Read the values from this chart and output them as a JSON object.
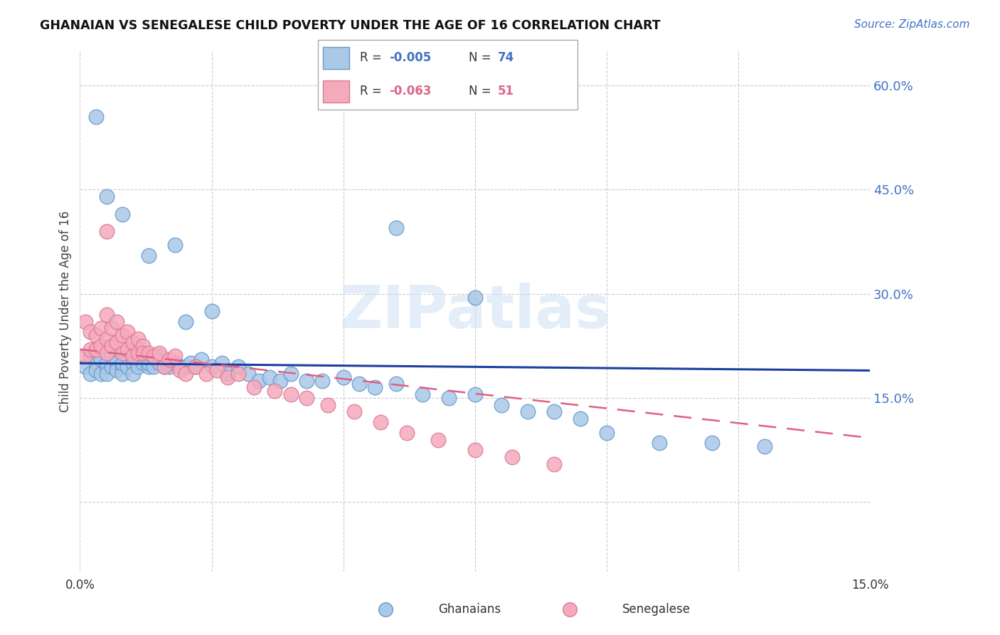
{
  "title": "GHANAIAN VS SENEGALESE CHILD POVERTY UNDER THE AGE OF 16 CORRELATION CHART",
  "source": "Source: ZipAtlas.com",
  "ylabel": "Child Poverty Under the Age of 16",
  "yticks": [
    0.0,
    0.15,
    0.3,
    0.45,
    0.6
  ],
  "ytick_labels": [
    "",
    "15.0%",
    "30.0%",
    "45.0%",
    "60.0%"
  ],
  "xmin": 0.0,
  "xmax": 0.15,
  "ymin": -0.1,
  "ymax": 0.65,
  "ghanaian_color": "#aac8e8",
  "senegalese_color": "#f5aabb",
  "ghanaian_edge": "#6699cc",
  "senegalese_edge": "#dd7799",
  "trend_ghana_color": "#1a3fa0",
  "trend_senegal_color": "#e06080",
  "watermark": "ZIPatlas",
  "ghana_R": "-0.005",
  "ghana_N": "74",
  "senegal_R": "-0.063",
  "senegal_N": "51",
  "ghanaian_x": [
    0.001,
    0.002,
    0.002,
    0.003,
    0.003,
    0.004,
    0.004,
    0.005,
    0.005,
    0.005,
    0.006,
    0.006,
    0.007,
    0.007,
    0.008,
    0.008,
    0.008,
    0.009,
    0.009,
    0.01,
    0.01,
    0.01,
    0.011,
    0.011,
    0.012,
    0.012,
    0.013,
    0.013,
    0.014,
    0.015,
    0.015,
    0.016,
    0.017,
    0.018,
    0.019,
    0.02,
    0.021,
    0.022,
    0.023,
    0.025,
    0.027,
    0.028,
    0.03,
    0.032,
    0.034,
    0.036,
    0.038,
    0.04,
    0.043,
    0.046,
    0.05,
    0.053,
    0.056,
    0.06,
    0.065,
    0.07,
    0.075,
    0.08,
    0.085,
    0.09,
    0.095,
    0.1,
    0.11,
    0.12,
    0.13,
    0.008,
    0.018,
    0.06,
    0.075,
    0.02,
    0.003,
    0.005,
    0.013,
    0.025
  ],
  "ghanaian_y": [
    0.195,
    0.185,
    0.21,
    0.2,
    0.19,
    0.185,
    0.205,
    0.195,
    0.2,
    0.185,
    0.195,
    0.21,
    0.2,
    0.19,
    0.195,
    0.185,
    0.2,
    0.21,
    0.195,
    0.2,
    0.185,
    0.215,
    0.2,
    0.195,
    0.2,
    0.215,
    0.195,
    0.2,
    0.195,
    0.2,
    0.21,
    0.195,
    0.195,
    0.2,
    0.195,
    0.195,
    0.2,
    0.195,
    0.205,
    0.195,
    0.2,
    0.185,
    0.195,
    0.185,
    0.175,
    0.18,
    0.175,
    0.185,
    0.175,
    0.175,
    0.18,
    0.17,
    0.165,
    0.17,
    0.155,
    0.15,
    0.155,
    0.14,
    0.13,
    0.13,
    0.12,
    0.1,
    0.085,
    0.085,
    0.08,
    0.415,
    0.37,
    0.395,
    0.295,
    0.26,
    0.555,
    0.44,
    0.355,
    0.275
  ],
  "senegalese_x": [
    0.001,
    0.001,
    0.002,
    0.002,
    0.003,
    0.003,
    0.004,
    0.004,
    0.005,
    0.005,
    0.005,
    0.006,
    0.006,
    0.007,
    0.007,
    0.008,
    0.008,
    0.009,
    0.009,
    0.01,
    0.01,
    0.011,
    0.011,
    0.012,
    0.012,
    0.013,
    0.014,
    0.015,
    0.016,
    0.017,
    0.018,
    0.019,
    0.02,
    0.022,
    0.024,
    0.026,
    0.028,
    0.03,
    0.033,
    0.037,
    0.04,
    0.043,
    0.047,
    0.052,
    0.057,
    0.062,
    0.068,
    0.075,
    0.082,
    0.09,
    0.005
  ],
  "senegalese_y": [
    0.21,
    0.26,
    0.22,
    0.245,
    0.22,
    0.24,
    0.225,
    0.25,
    0.215,
    0.235,
    0.27,
    0.225,
    0.25,
    0.23,
    0.26,
    0.215,
    0.24,
    0.22,
    0.245,
    0.21,
    0.23,
    0.235,
    0.215,
    0.225,
    0.215,
    0.215,
    0.21,
    0.215,
    0.195,
    0.205,
    0.21,
    0.19,
    0.185,
    0.195,
    0.185,
    0.19,
    0.18,
    0.185,
    0.165,
    0.16,
    0.155,
    0.15,
    0.14,
    0.13,
    0.115,
    0.1,
    0.09,
    0.075,
    0.065,
    0.055,
    0.39
  ]
}
